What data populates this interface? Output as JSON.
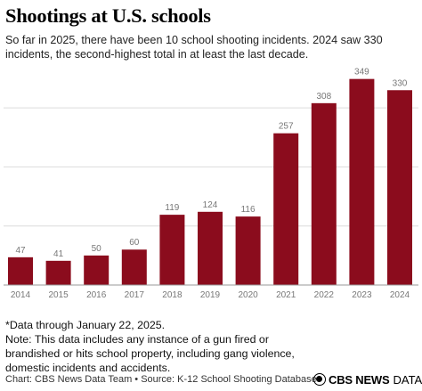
{
  "header": {
    "title": "Shootings at U.S. schools",
    "subtitle": "So far in 2025, there have been 10 school shooting incidents. 2024 saw 330 incidents, the second-highest total in at least the last decade."
  },
  "chart_data": {
    "type": "bar",
    "categories": [
      "2014",
      "2015",
      "2016",
      "2017",
      "2018",
      "2019",
      "2020",
      "2021",
      "2022",
      "2023",
      "2024"
    ],
    "values": [
      47,
      41,
      50,
      60,
      119,
      124,
      116,
      257,
      308,
      349,
      330
    ],
    "title": "",
    "xlabel": "",
    "ylabel": "",
    "ylim": [
      0,
      350
    ],
    "gridlines": [
      100,
      200,
      300
    ],
    "grid": true,
    "data_labels": true,
    "bar_color": "#8b0c1d",
    "grid_color": "#dcdcdc",
    "label_color": "#777777"
  },
  "notes": {
    "line1": "*Data through January 22, 2025.",
    "line2": "Note: This data includes any instance of a gun fired or",
    "line3": "brandished or hits school property, including gang violence,",
    "line4": "domestic incidents and accidents."
  },
  "footer": {
    "source": "Chart: CBS News Data Team • Source: K-12 School Shooting Database",
    "brand_bold": "CBS NEWS",
    "brand_light": "DATA",
    "brand_icon": "cbs-eye-icon"
  }
}
